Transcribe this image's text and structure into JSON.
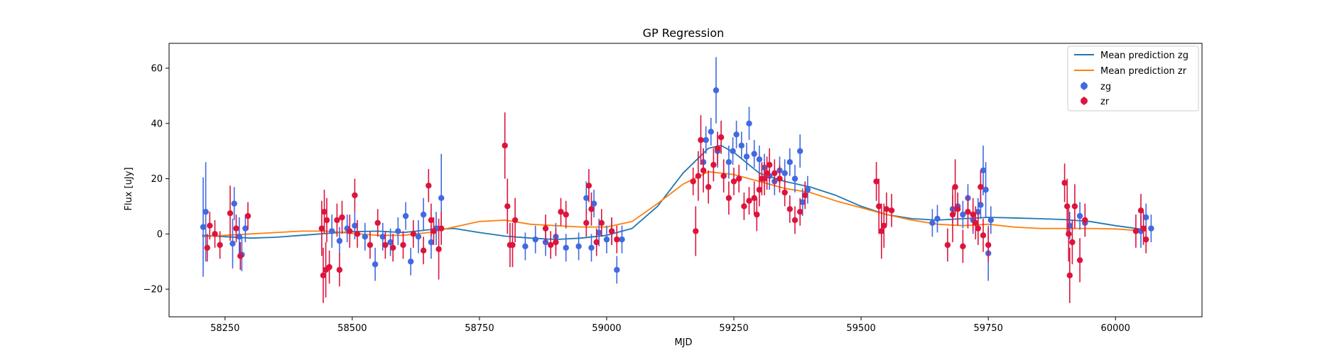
{
  "chart_data": {
    "type": "scatter",
    "title": "GP Regression",
    "xlabel": "MJD",
    "ylabel": "Flux [uJy]",
    "xlim": [
      58140,
      60170
    ],
    "ylim": [
      -30,
      69
    ],
    "x_ticks": [
      58250,
      58500,
      58750,
      59000,
      59250,
      59500,
      59750,
      60000
    ],
    "y_ticks": [
      -20,
      0,
      20,
      40,
      60
    ],
    "grid": false,
    "legend_position": "top-right",
    "colors": {
      "zg_line": "#1f77b4",
      "zr_line": "#ff7f0e",
      "zg_points": "#4169e1",
      "zr_points": "#dc143c"
    },
    "series": [
      {
        "name": "Mean prediction zg",
        "kind": "line",
        "x": [
          58205,
          58250,
          58300,
          58350,
          58400,
          58450,
          58500,
          58550,
          58600,
          58650,
          58700,
          58750,
          58800,
          58850,
          58900,
          58950,
          59000,
          59050,
          59100,
          59150,
          59200,
          59225,
          59250,
          59300,
          59350,
          59400,
          59450,
          59500,
          59550,
          59600,
          59650,
          59700,
          59750,
          59800,
          59850,
          59900,
          59950,
          60000,
          60060
        ],
        "y": [
          -0.5,
          -1.0,
          -1.5,
          -1.2,
          -0.5,
          0.2,
          0.8,
          1.0,
          0.5,
          1.5,
          2.0,
          0.5,
          -0.8,
          -1.5,
          -2.0,
          -1.5,
          -0.5,
          2.0,
          10.0,
          22.0,
          31.0,
          32.0,
          29.5,
          22.0,
          19.0,
          17.0,
          14.0,
          10.0,
          7.0,
          5.5,
          5.0,
          5.5,
          6.0,
          5.8,
          5.5,
          5.2,
          4.5,
          3.0,
          1.5
        ]
      },
      {
        "name": "Mean prediction zr",
        "kind": "line",
        "x": [
          58205,
          58250,
          58300,
          58350,
          58400,
          58450,
          58500,
          58550,
          58600,
          58650,
          58700,
          58750,
          58800,
          58850,
          58900,
          58950,
          59000,
          59050,
          59100,
          59150,
          59200,
          59250,
          59300,
          59350,
          59400,
          59450,
          59500,
          59550,
          59600,
          59650,
          59700,
          59750,
          59800,
          59850,
          59900,
          59950,
          60000,
          60060
        ],
        "y": [
          -1.0,
          -0.5,
          0.0,
          0.5,
          1.0,
          1.0,
          0.2,
          -0.5,
          -0.5,
          0.5,
          2.5,
          4.5,
          5.0,
          3.5,
          3.0,
          2.5,
          2.5,
          4.5,
          11.0,
          18.0,
          22.5,
          21.5,
          19.0,
          16.5,
          15.0,
          12.0,
          9.5,
          7.0,
          5.0,
          3.5,
          3.0,
          3.5,
          2.5,
          2.0,
          2.0,
          2.0,
          1.8,
          1.0
        ]
      },
      {
        "name": "zg",
        "kind": "errorbar",
        "x": [
          58207,
          58212,
          58265,
          58268,
          58278,
          58283,
          58290,
          58460,
          58475,
          58490,
          58505,
          58525,
          58545,
          58560,
          58575,
          58590,
          58605,
          58615,
          58630,
          58640,
          58655,
          58665,
          58675,
          58840,
          58860,
          58880,
          58900,
          58920,
          58945,
          58960,
          58970,
          58975,
          58985,
          59000,
          59010,
          59020,
          59030,
          59190,
          59195,
          59205,
          59215,
          59218,
          59240,
          59248,
          59255,
          59265,
          59275,
          59280,
          59290,
          59300,
          59310,
          59320,
          59330,
          59340,
          59350,
          59360,
          59370,
          59380,
          59385,
          59395,
          59640,
          59650,
          59680,
          59690,
          59700,
          59710,
          59720,
          59730,
          59735,
          59740,
          59745,
          59750,
          59755,
          59910,
          59930,
          59940,
          60050,
          60060,
          60070
        ],
        "y": [
          2.5,
          8,
          -3.5,
          11,
          -1,
          -7.5,
          2,
          1,
          -2.5,
          2,
          3,
          -1,
          -11,
          -1,
          -3,
          1,
          6.5,
          -10,
          -1,
          7,
          -3,
          2,
          13,
          -4.5,
          -2,
          -3,
          -1,
          -5,
          -4.5,
          13,
          -5,
          11,
          0.5,
          -2,
          1,
          -13,
          -2,
          26,
          34,
          37,
          52,
          30,
          26,
          30,
          36,
          32,
          28,
          40,
          29,
          27,
          24,
          21,
          19,
          23,
          22,
          26,
          20,
          30,
          11.5,
          16,
          4,
          5.5,
          9,
          10,
          7,
          13,
          5,
          8,
          10.5,
          23,
          16,
          -7,
          5,
          3,
          6.5,
          4,
          1,
          6,
          2
        ],
        "err": [
          18,
          18,
          9,
          6,
          7,
          6,
          5,
          6,
          5,
          5,
          5,
          5,
          6,
          5,
          5,
          5,
          5,
          5,
          6,
          6,
          6,
          6,
          16,
          5,
          5,
          5,
          5,
          5,
          5,
          6,
          5,
          5,
          5,
          5,
          5,
          5,
          5,
          5,
          5,
          5,
          12,
          6,
          6,
          5,
          5,
          5,
          5,
          6,
          5,
          5,
          5,
          5,
          5,
          5,
          5,
          5,
          5,
          6,
          5,
          5,
          5,
          5,
          5,
          5,
          5,
          5,
          5,
          5,
          5,
          9,
          10,
          10,
          5,
          5,
          5,
          5,
          6,
          5,
          5
        ]
      },
      {
        "name": "zr",
        "kind": "errorbar",
        "x": [
          58215,
          58220,
          58230,
          58240,
          58260,
          58272,
          58280,
          58295,
          58440,
          58443,
          58445,
          58448,
          58450,
          58455,
          58470,
          58475,
          58480,
          58495,
          58505,
          58510,
          58535,
          58550,
          58565,
          58580,
          58600,
          58620,
          58640,
          58650,
          58655,
          58660,
          58670,
          58675,
          58800,
          58805,
          58810,
          58815,
          58820,
          58880,
          58890,
          58900,
          58910,
          58920,
          58960,
          58965,
          58970,
          58980,
          58990,
          59010,
          59020,
          59170,
          59175,
          59180,
          59185,
          59190,
          59200,
          59210,
          59218,
          59225,
          59230,
          59240,
          59250,
          59260,
          59270,
          59280,
          59290,
          59295,
          59300,
          59305,
          59310,
          59315,
          59320,
          59330,
          59340,
          59350,
          59360,
          59370,
          59380,
          59390,
          59530,
          59535,
          59540,
          59545,
          59550,
          59560,
          59670,
          59680,
          59685,
          59690,
          59700,
          59710,
          59720,
          59725,
          59730,
          59735,
          59740,
          59750,
          59900,
          59905,
          59908,
          59910,
          59915,
          59920,
          59930,
          59940,
          60040,
          60050,
          60055,
          60060
        ],
        "y": [
          -5,
          3,
          0,
          -4,
          7.5,
          2,
          -8,
          6.5,
          2,
          -15,
          8,
          -13,
          5,
          -12,
          5,
          -13,
          6,
          1,
          14,
          0,
          -4,
          4,
          -4,
          -5,
          -4,
          0,
          -6,
          17.5,
          5,
          1,
          -5.5,
          2,
          32,
          10,
          -4,
          -4,
          5,
          2,
          -4,
          -3,
          8,
          7,
          4,
          17.5,
          9,
          -3,
          4,
          1,
          -2,
          19,
          1,
          21,
          34,
          23,
          17,
          25,
          31,
          35,
          21,
          13,
          19,
          20,
          10,
          12,
          13,
          7,
          16,
          20,
          20,
          22,
          25,
          22,
          20,
          15,
          9,
          5,
          8,
          14,
          19,
          10,
          1,
          3,
          9,
          8.5,
          -4,
          7,
          17,
          9,
          -4.5,
          8,
          7,
          4,
          2,
          17,
          -0.5,
          -4,
          18.5,
          10,
          0,
          -15,
          -3,
          10,
          -9.5,
          5,
          1,
          8.5,
          2,
          -2
        ],
        "err": [
          5,
          5,
          5,
          5,
          10,
          5,
          5,
          5,
          10,
          10,
          8,
          10,
          8,
          6,
          6,
          6,
          6,
          6,
          6,
          5,
          5,
          5,
          5,
          5,
          5,
          5,
          5,
          6,
          6,
          5,
          11,
          6,
          12,
          10,
          8,
          8,
          8,
          5,
          5,
          5,
          5,
          5,
          5,
          6,
          6,
          5,
          5,
          5,
          5,
          5,
          9,
          9,
          9,
          8,
          6,
          6,
          6,
          6,
          6,
          6,
          5,
          5,
          5,
          5,
          6,
          6,
          6,
          6,
          6,
          6,
          6,
          5,
          5,
          5,
          5,
          5,
          5,
          5,
          7,
          10,
          10,
          8,
          6,
          6,
          6,
          10,
          10,
          6,
          6,
          6,
          6,
          6,
          6,
          6,
          6,
          6,
          7,
          10,
          10,
          10,
          8,
          8,
          8,
          6,
          6,
          6,
          6,
          5
        ]
      }
    ]
  }
}
